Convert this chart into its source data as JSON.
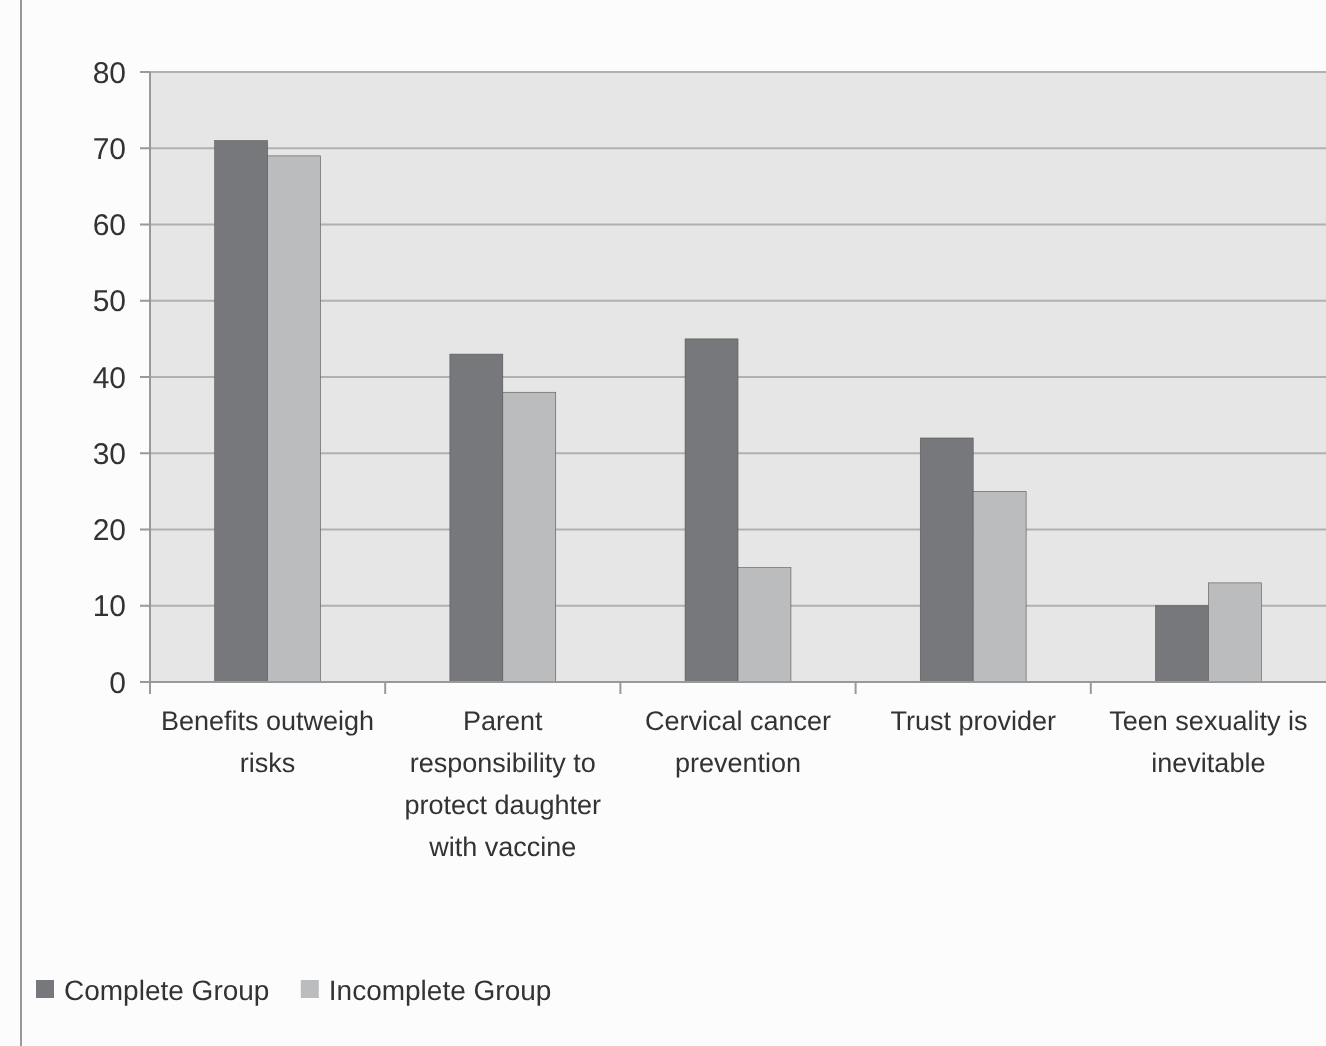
{
  "chart_data": {
    "type": "bar",
    "categories": [
      "Benefits outweigh risks",
      "Parent responsibility to protect daughter with vaccine",
      "Cervical cancer prevention",
      "Trust provider",
      "Teen sexuality is inevitable"
    ],
    "series": [
      {
        "name": "Complete Group",
        "color": "#77787c",
        "values": [
          71,
          43,
          45,
          32,
          10
        ]
      },
      {
        "name": "Incomplete Group",
        "color": "#bbbcbe",
        "values": [
          69,
          38,
          15,
          25,
          13
        ]
      }
    ],
    "ylim": [
      0,
      80
    ],
    "yticks": [
      0,
      10,
      20,
      30,
      40,
      50,
      60,
      70,
      80
    ],
    "grid": "y",
    "legend": "bottom left"
  }
}
